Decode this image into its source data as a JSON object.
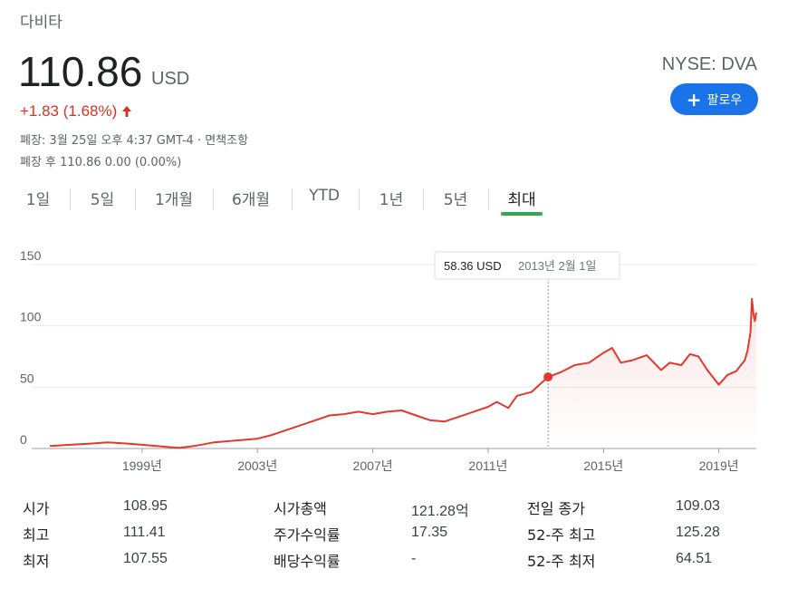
{
  "header": {
    "company": "다비타",
    "price": "110.86",
    "currency": "USD",
    "change": "+1.83 (1.68%)",
    "close_info": "폐장: 3월 25일 오후 4:37 GMT-4 · 면책조항",
    "after_hours": "폐장 후 110.86 0.00 (0.00%)",
    "ticker": "NYSE: DVA",
    "follow_label": "팔로우"
  },
  "colors": {
    "line": "#e5382d",
    "accent": "#1a73e8",
    "active_tab": "#34a853",
    "negative": "#d93025"
  },
  "icons": {
    "change": "arrow-up-icon",
    "follow": "plus-icon"
  },
  "tabs": [
    {
      "label": "1일"
    },
    {
      "label": "5일"
    },
    {
      "label": "1개월"
    },
    {
      "label": "6개월"
    },
    {
      "label": "YTD"
    },
    {
      "label": "1년"
    },
    {
      "label": "5년"
    },
    {
      "label": "최대",
      "active": true
    }
  ],
  "chart_data": {
    "type": "line",
    "yticks": [
      0,
      50,
      100,
      150
    ],
    "ylim": [
      0,
      150
    ],
    "xticks": [
      "1999년",
      "2003년",
      "2007년",
      "2011년",
      "2015년",
      "2019년"
    ],
    "xlim": [
      1995.8,
      2020.3
    ],
    "grid": true,
    "tooltip": {
      "value": "58.36 USD",
      "date": "2013년 2월 1일",
      "x": 2013.08,
      "y": 58.36
    },
    "series": [
      {
        "x": [
          1995.8,
          1996.5,
          1997.2,
          1997.8,
          1998.5,
          1999.0,
          1999.5,
          2000.0,
          2000.3,
          2000.8,
          2001.5,
          2002.0,
          2002.5,
          2003.0,
          2003.5,
          2004.0,
          2004.5,
          2005.0,
          2005.5,
          2006.0,
          2006.5,
          2007.0,
          2007.5,
          2008.0,
          2008.5,
          2009.0,
          2009.5,
          2010.0,
          2010.5,
          2011.0,
          2011.3,
          2011.7,
          2012.0,
          2012.5,
          2013.08,
          2013.5,
          2014.0,
          2014.5,
          2015.0,
          2015.3,
          2015.6,
          2016.0,
          2016.5,
          2017.0,
          2017.3,
          2017.7,
          2018.0,
          2018.3,
          2018.6,
          2019.0,
          2019.3,
          2019.6,
          2019.9,
          2020.0,
          2020.1,
          2020.15,
          2020.2,
          2020.25,
          2020.3
        ],
        "y": [
          2,
          3,
          4,
          5,
          4,
          3,
          2,
          1,
          0.5,
          2,
          5,
          6,
          7,
          8,
          11,
          15,
          19,
          23,
          27,
          28,
          30,
          28,
          30,
          31,
          27,
          23,
          22,
          26,
          30,
          34,
          38,
          33,
          43,
          46,
          58.36,
          62,
          68,
          70,
          78,
          82,
          70,
          72,
          76,
          64,
          70,
          68,
          77,
          75,
          64,
          52,
          60,
          63,
          72,
          80,
          95,
          122,
          110,
          104,
          110.86
        ]
      }
    ]
  },
  "stats": [
    [
      {
        "label": "시가",
        "value": "108.95"
      },
      {
        "label": "시가총액",
        "value": "121.28억"
      },
      {
        "label": "전일 종가",
        "value": "109.03"
      }
    ],
    [
      {
        "label": "최고",
        "value": "111.41"
      },
      {
        "label": "주가수익률",
        "value": "17.35"
      },
      {
        "label": "52-주 최고",
        "value": "125.28"
      }
    ],
    [
      {
        "label": "최저",
        "value": "107.55"
      },
      {
        "label": "배당수익률",
        "value": "-"
      },
      {
        "label": "52-주 최저",
        "value": "64.51"
      }
    ]
  ]
}
